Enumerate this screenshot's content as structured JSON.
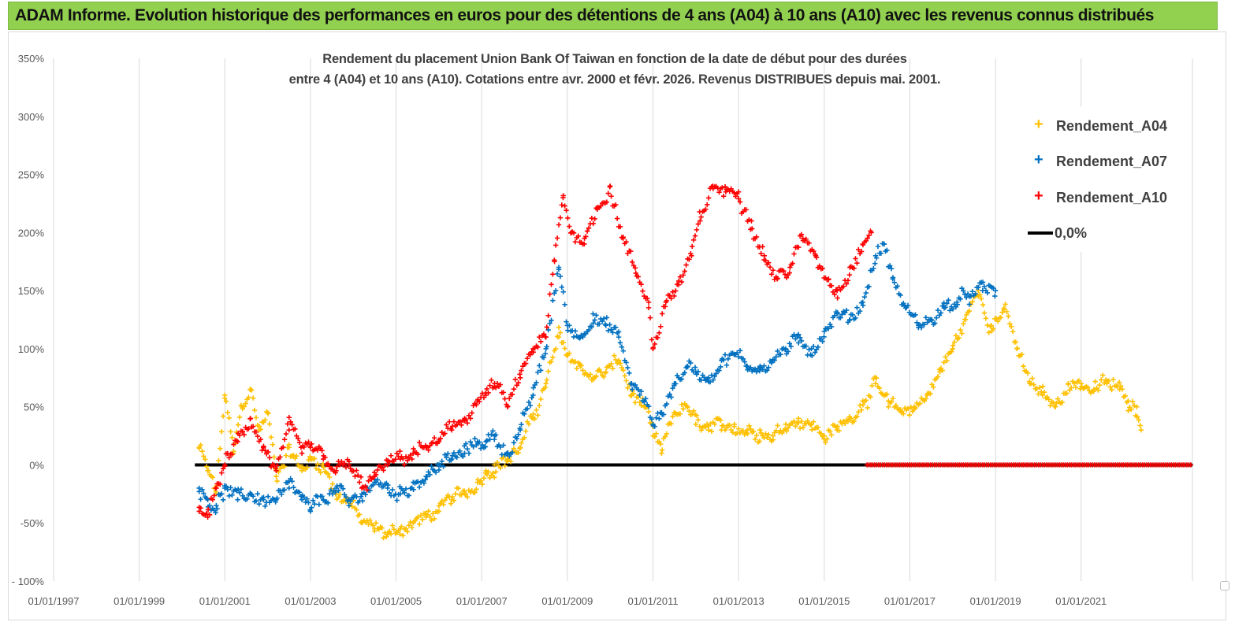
{
  "banner": {
    "title": "ADAM Informe. Evolution historique des performances en euros pour des détentions de 4 ans (A04) à 10 ans (A10) avec les revenus connus distribués"
  },
  "chart_data": {
    "type": "scatter",
    "title_line1": "Rendement du placement Union Bank Of Taiwan  en fonction de la date de début pour des durées",
    "title_line2": "entre 4 (A04) et 10 ans (A10).  Cotations entre avr. 2000 et févr. 2026. Revenus DISTRIBUES depuis mai. 2001.",
    "x_tick_labels": [
      "01/01/1997",
      "01/01/1999",
      "01/01/2001",
      "01/01/2003",
      "01/01/2005",
      "01/01/2007",
      "01/01/2009",
      "01/01/2011",
      "01/01/2013",
      "01/01/2015",
      "01/01/2017",
      "01/01/2019",
      "01/01/2021"
    ],
    "xlim": [
      1997.0,
      2023.6
    ],
    "y_tick_labels": [
      "350%",
      "300%",
      "250%",
      "200%",
      "150%",
      "100%",
      "50%",
      "0%",
      "-50%",
      "- 100%"
    ],
    "ylim": [
      -100,
      350
    ],
    "ylabel_unit": "%",
    "grid": "vertical",
    "legend_position": "top-right",
    "series": [
      {
        "name": "Rendement_A04",
        "color": "#ffc000",
        "marker": "+",
        "x": [
          2000.4,
          2000.6,
          2000.8,
          2001.0,
          2001.2,
          2001.4,
          2001.6,
          2001.8,
          2002.0,
          2002.2,
          2002.5,
          2002.8,
          2003.0,
          2003.3,
          2003.6,
          2003.9,
          2004.2,
          2004.5,
          2004.8,
          2005.1,
          2005.4,
          2005.7,
          2006.0,
          2006.3,
          2006.6,
          2006.9,
          2007.1,
          2007.3,
          2007.6,
          2007.9,
          2008.2,
          2008.5,
          2008.8,
          2009.0,
          2009.3,
          2009.6,
          2009.9,
          2010.2,
          2010.5,
          2010.8,
          2011.0,
          2011.2,
          2011.5,
          2011.8,
          2012.0,
          2012.3,
          2012.6,
          2012.9,
          2013.2,
          2013.5,
          2013.8,
          2014.1,
          2014.4,
          2014.7,
          2015.0,
          2015.3,
          2015.6,
          2015.9,
          2016.2,
          2016.5,
          2016.8,
          2017.1,
          2017.4,
          2017.7,
          2018.0,
          2018.3,
          2018.6,
          2018.9,
          2019.2,
          2019.5,
          2019.8,
          2020.1,
          2020.4,
          2020.7,
          2021.0,
          2021.3,
          2021.6,
          2021.9,
          2022.1,
          2022.3,
          2022.4
        ],
        "y": [
          15,
          -5,
          -25,
          60,
          10,
          50,
          65,
          30,
          45,
          -10,
          15,
          -5,
          5,
          0,
          -25,
          -30,
          -50,
          -55,
          -60,
          -55,
          -50,
          -45,
          -40,
          -30,
          -25,
          -15,
          -5,
          0,
          5,
          15,
          40,
          70,
          110,
          95,
          85,
          75,
          80,
          90,
          60,
          50,
          25,
          10,
          45,
          50,
          35,
          30,
          30,
          35,
          30,
          30,
          25,
          35,
          40,
          35,
          25,
          30,
          40,
          55,
          70,
          50,
          45,
          50,
          60,
          80,
          100,
          125,
          150,
          120,
          135,
          100,
          70,
          60,
          50,
          70,
          70,
          65,
          70,
          65,
          55,
          50,
          30
        ]
      },
      {
        "name": "Rendement_A07",
        "color": "#0070c0",
        "marker": "+",
        "x": [
          2000.4,
          2000.6,
          2000.8,
          2001.0,
          2001.3,
          2001.6,
          2001.9,
          2002.2,
          2002.5,
          2002.8,
          2003.0,
          2003.3,
          2003.6,
          2003.9,
          2004.2,
          2004.5,
          2004.8,
          2005.1,
          2005.4,
          2005.7,
          2006.0,
          2006.3,
          2006.6,
          2006.9,
          2007.1,
          2007.3,
          2007.6,
          2007.9,
          2008.2,
          2008.5,
          2008.8,
          2009.0,
          2009.3,
          2009.6,
          2009.9,
          2010.2,
          2010.5,
          2010.8,
          2011.0,
          2011.2,
          2011.5,
          2011.8,
          2012.0,
          2012.3,
          2012.6,
          2012.9,
          2013.2,
          2013.5,
          2013.8,
          2014.1,
          2014.4,
          2014.7,
          2015.0,
          2015.3,
          2015.6,
          2015.9,
          2016.2,
          2016.4,
          2016.6,
          2016.9,
          2017.2,
          2017.5,
          2017.8,
          2018.1,
          2018.4,
          2018.7,
          2019.0
        ],
        "y": [
          -20,
          -30,
          -35,
          -20,
          -30,
          -25,
          -30,
          -30,
          -20,
          -30,
          -40,
          -30,
          -20,
          -35,
          -25,
          -15,
          -20,
          -25,
          -15,
          -10,
          0,
          5,
          10,
          20,
          20,
          25,
          10,
          30,
          60,
          100,
          170,
          120,
          110,
          130,
          120,
          110,
          70,
          55,
          35,
          45,
          70,
          85,
          80,
          75,
          90,
          95,
          85,
          85,
          90,
          100,
          105,
          100,
          115,
          130,
          125,
          140,
          180,
          190,
          160,
          135,
          120,
          125,
          135,
          140,
          145,
          150,
          150
        ]
      },
      {
        "name": "Rendement_A10",
        "color": "#ff0000",
        "marker": "+",
        "x": [
          2000.4,
          2000.6,
          2000.8,
          2001.0,
          2001.3,
          2001.6,
          2001.9,
          2002.2,
          2002.5,
          2002.8,
          2003.0,
          2003.3,
          2003.6,
          2003.9,
          2004.2,
          2004.5,
          2004.8,
          2005.1,
          2005.4,
          2005.7,
          2006.0,
          2006.3,
          2006.6,
          2006.9,
          2007.1,
          2007.3,
          2007.6,
          2007.9,
          2008.2,
          2008.5,
          2008.7,
          2008.9,
          2009.1,
          2009.4,
          2009.7,
          2010.0,
          2010.3,
          2010.6,
          2010.9,
          2011.0,
          2011.3,
          2011.6,
          2011.9,
          2012.1,
          2012.4,
          2012.7,
          2013.0,
          2013.3,
          2013.6,
          2013.9,
          2014.2,
          2014.5,
          2014.8,
          2015.1,
          2015.3,
          2015.6,
          2015.9,
          2016.1
        ],
        "y": [
          -40,
          -45,
          -20,
          0,
          20,
          40,
          15,
          -5,
          30,
          10,
          15,
          5,
          -5,
          0,
          -20,
          -10,
          0,
          5,
          10,
          15,
          20,
          30,
          40,
          55,
          60,
          70,
          50,
          75,
          100,
          110,
          175,
          230,
          200,
          195,
          220,
          240,
          195,
          165,
          140,
          100,
          140,
          155,
          180,
          210,
          240,
          235,
          235,
          210,
          180,
          160,
          170,
          195,
          180,
          160,
          150,
          170,
          190,
          200
        ]
      },
      {
        "name": "0,0%",
        "color": "#000000",
        "type": "line",
        "x": [
          2000.3,
          2023.6
        ],
        "y": [
          0,
          0
        ]
      }
    ],
    "annotations": [
      {
        "label": "A10 zero-valued markers",
        "x_range": [
          2016.0,
          2023.6
        ],
        "y": 0,
        "color": "#ff0000"
      }
    ]
  }
}
